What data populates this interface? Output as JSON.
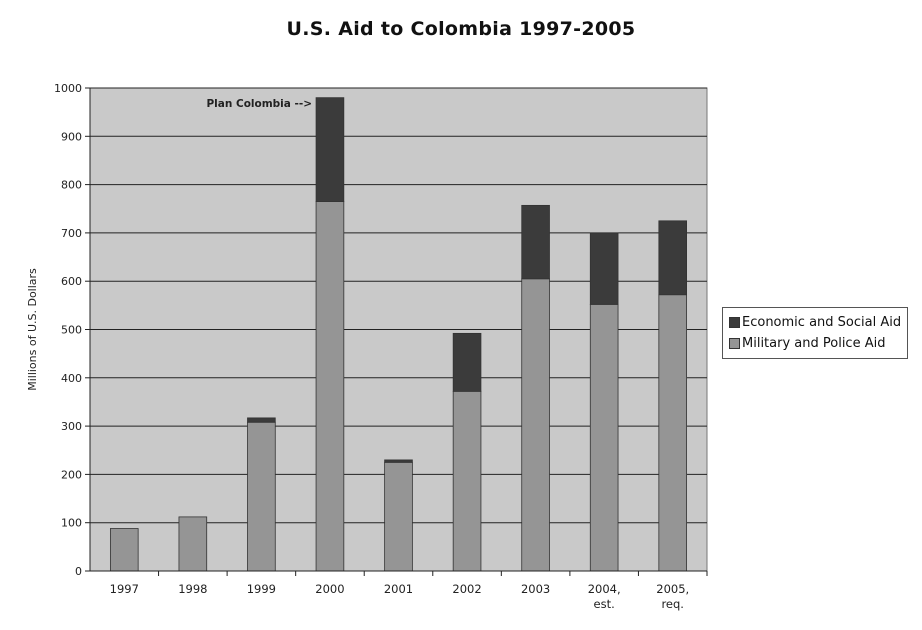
{
  "chart_data": {
    "type": "bar",
    "stacked": true,
    "title": "U.S. Aid to Colombia 1997-2005",
    "xlabel": "",
    "ylabel": "Millions of U.S. Dollars",
    "ylim": [
      0,
      1000
    ],
    "yticks": [
      "0",
      "100",
      "200",
      "300",
      "400",
      "500",
      "600",
      "700",
      "800",
      "900",
      "1000"
    ],
    "categories": [
      "1997",
      "1998",
      "1999",
      "2000",
      "2001",
      "2002",
      "2003",
      "2004, est.",
      "2005, req."
    ],
    "series": [
      {
        "name": "Military and Police Aid",
        "color": "#959595",
        "values": [
          88,
          112,
          308,
          765,
          225,
          372,
          605,
          552,
          572
        ]
      },
      {
        "name": "Economic and Social Aid",
        "color": "#3b3b3b",
        "values": [
          0,
          0,
          9,
          215,
          5,
          120,
          152,
          148,
          153
        ]
      }
    ],
    "grid": true,
    "plot_background": "#c9c9c9",
    "legend_position": "right",
    "annotation": "Plan Colombia -->"
  }
}
